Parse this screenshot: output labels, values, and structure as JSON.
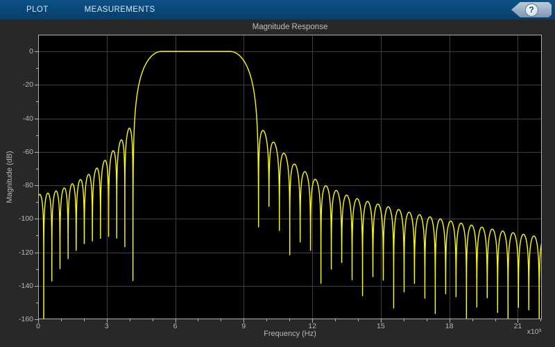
{
  "toolbar": {
    "tabs": [
      {
        "label": "PLOT"
      },
      {
        "label": "MEASUREMENTS"
      }
    ],
    "help_button": {
      "glyph": "?"
    }
  },
  "panel": {
    "title": "Magnitude Response"
  },
  "chart_data": {
    "type": "line",
    "title": "Magnitude Response",
    "xlabel": "Frequency (Hz)",
    "ylabel": "Magnitude (dB)",
    "x_scale_label": "x10³",
    "xlim_hz": [
      0,
      22050
    ],
    "ylim_db": [
      -160,
      10
    ],
    "xticks_khz": [
      0,
      3,
      6,
      9,
      12,
      15,
      18,
      21
    ],
    "x_minor_step_hz": 1000,
    "yticks_db": [
      0,
      -20,
      -40,
      -60,
      -80,
      -100,
      -120,
      -140,
      -160
    ],
    "y_minor_step_db": 10,
    "grid": true,
    "legend": "none",
    "line_color": "#ffff00",
    "plot_bg": "#000000",
    "response_model": {
      "description": "FIR bandpass magnitude response in dB: flat 0 dB passband, raised-cosine transition edges, decaying sinc-like stopband lobes",
      "passband": {
        "flat_start_hz": 5400,
        "flat_end_hz": 8400,
        "gain_db": 0
      },
      "transition_left_hz": [
        4150,
        5400
      ],
      "transition_right_hz": [
        8400,
        9650
      ],
      "left_stopband": {
        "null_spacing_hz": 355,
        "envelope_db_anchors": [
          [
            0,
            -85.5
          ],
          [
            500,
            -84.5
          ],
          [
            1000,
            -82.5
          ],
          [
            1500,
            -79
          ],
          [
            2000,
            -75.5
          ],
          [
            2500,
            -70.5
          ],
          [
            3000,
            -64
          ],
          [
            3500,
            -55.5
          ],
          [
            4000,
            -45.5
          ],
          [
            4150,
            -44
          ]
        ]
      },
      "right_stopband": {
        "null_spacing_hz": 455,
        "envelope_db_anchors": [
          [
            9650,
            -44
          ],
          [
            10300,
            -54
          ],
          [
            11200,
            -67
          ],
          [
            12400,
            -79
          ],
          [
            13700,
            -87
          ],
          [
            15100,
            -92
          ],
          [
            16500,
            -97
          ],
          [
            18300,
            -102
          ],
          [
            20200,
            -107
          ],
          [
            22050,
            -111
          ]
        ]
      },
      "clip_db": -175
    }
  },
  "colors": {
    "toolbar_bg": "#07436f",
    "panel_bg": "#282828",
    "plot_bg": "#000000",
    "grid": "#3f3f3f",
    "axis": "#b0b0b0",
    "text": "#b8b8b8",
    "tab_text": "#d7e5f2",
    "curve": "#ffff00",
    "help_badge": "#8fa9c0",
    "help_glyph": "#0a4876"
  }
}
